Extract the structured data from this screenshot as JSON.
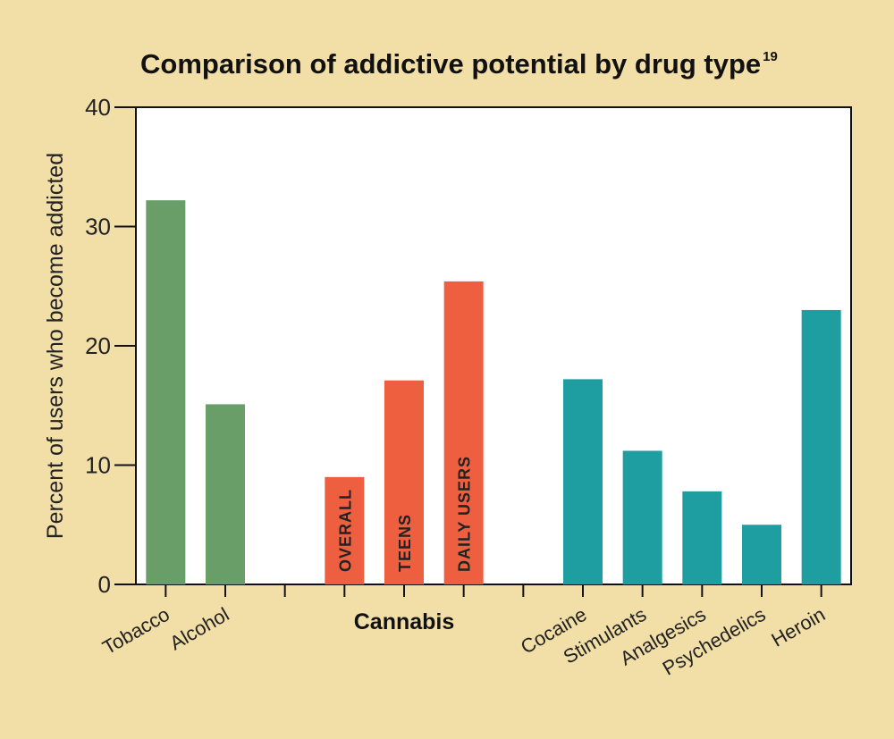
{
  "chart_data": {
    "type": "bar",
    "title": "Comparison of addictive potential by drug type",
    "title_superscript": "19",
    "ylabel": "Percent of users who become addicted",
    "ylim": [
      0,
      40
    ],
    "yticks": [
      0,
      10,
      20,
      30,
      40
    ],
    "grid": false,
    "slots": 12,
    "categories": [
      "Tobacco",
      "Alcohol",
      "OVERALL",
      "TEENS",
      "DAILY USERS",
      "Cocaine",
      "Stimulants",
      "Analgesics",
      "Psychedelics",
      "Heroin"
    ],
    "positions": [
      1,
      2,
      4,
      5,
      6,
      8,
      9,
      10,
      11,
      12
    ],
    "values": [
      32.2,
      15.1,
      9.0,
      17.1,
      25.4,
      17.2,
      11.2,
      7.8,
      5.0,
      23.0
    ],
    "group_labels": [
      {
        "label": "Cannabis",
        "position": 5
      }
    ],
    "colors": {
      "Tobacco": "#6a9e69",
      "Alcohol": "#6a9e69",
      "OVERALL": "#ee5f40",
      "TEENS": "#ee5f40",
      "DAILY USERS": "#ee5f40",
      "Cocaine": "#1f9ea1",
      "Stimulants": "#1f9ea1",
      "Analgesics": "#1f9ea1",
      "Psychedelics": "#1f9ea1",
      "Heroin": "#1f9ea1"
    },
    "label_inside_bar": [
      "OVERALL",
      "TEENS",
      "DAILY USERS"
    ]
  }
}
